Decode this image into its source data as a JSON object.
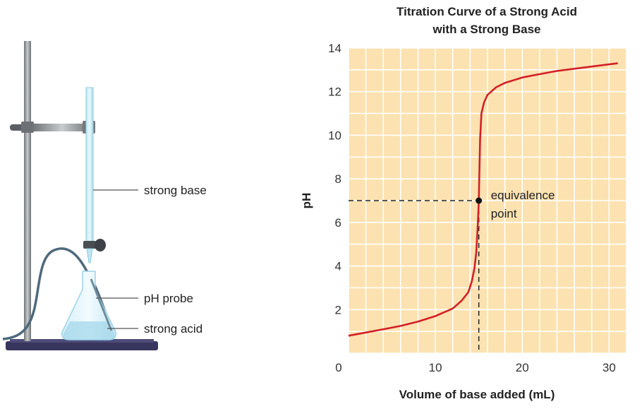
{
  "apparatus": {
    "labels": {
      "strong_base": "strong base",
      "ph_probe": "pH probe",
      "strong_acid": "strong acid"
    }
  },
  "chart_data": {
    "type": "line",
    "title": [
      "Titration Curve of a Strong Acid",
      "with a Strong Base"
    ],
    "xlabel": "Volume of base added (mL)",
    "ylabel": "pH",
    "xlim": [
      0,
      32
    ],
    "ylim": [
      0,
      14
    ],
    "xticks": [
      0,
      10,
      20,
      30
    ],
    "yticks": [
      2,
      4,
      6,
      8,
      10,
      12,
      14
    ],
    "grid": true,
    "series": [
      {
        "x": [
          0,
          2,
          4,
          6,
          8,
          10,
          12,
          13,
          13.8,
          14.2,
          14.5,
          14.7,
          14.85,
          14.95,
          15.0,
          15.05,
          15.15,
          15.3,
          15.6,
          16,
          17,
          18,
          20,
          22,
          24,
          26,
          28,
          30,
          31
        ],
        "y": [
          0.8,
          0.95,
          1.1,
          1.25,
          1.45,
          1.7,
          2.05,
          2.4,
          2.8,
          3.3,
          3.9,
          4.6,
          5.6,
          6.5,
          7.0,
          8.0,
          9.8,
          11.0,
          11.5,
          11.85,
          12.2,
          12.4,
          12.65,
          12.8,
          12.95,
          13.05,
          13.15,
          13.25,
          13.3
        ],
        "color": "#d32027"
      }
    ],
    "annotations": [
      {
        "text": [
          "equivalence",
          "point"
        ],
        "x": 15,
        "y": 7
      }
    ]
  }
}
